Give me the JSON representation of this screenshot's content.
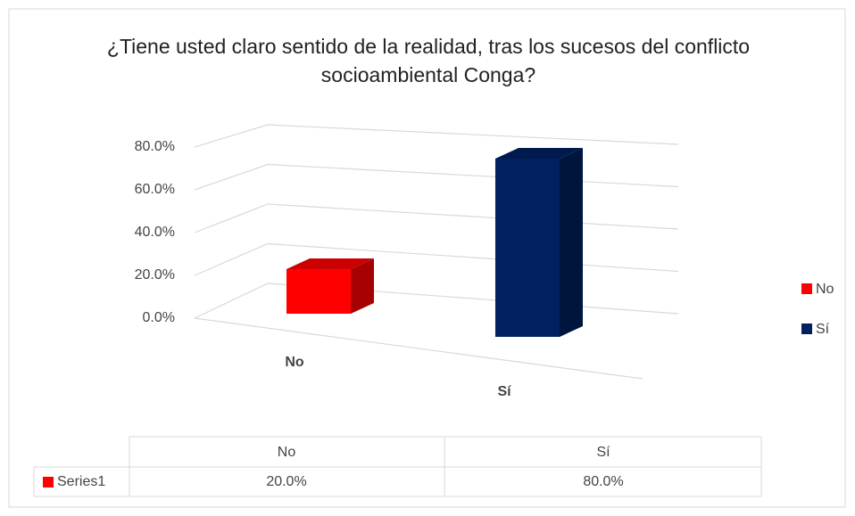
{
  "chart_data": {
    "type": "bar",
    "title": "¿Tiene usted claro sentido de la realidad, tras los sucesos del conflicto socioambiental Conga?",
    "categories": [
      "No",
      "Sí"
    ],
    "series": [
      {
        "name": "Series1",
        "values": [
          20,
          80
        ],
        "value_labels": [
          "20.0%",
          "80.0%"
        ],
        "colors": [
          "#ff0000",
          "#002060"
        ]
      }
    ],
    "ylim": [
      0,
      80
    ],
    "yticks": [
      {
        "value": 0,
        "label": "0.0%"
      },
      {
        "value": 20,
        "label": "20.0%"
      },
      {
        "value": 40,
        "label": "40.0%"
      },
      {
        "value": 60,
        "label": "60.0%"
      },
      {
        "value": 80,
        "label": "80.0%"
      }
    ],
    "grid": true,
    "legend": "right"
  }
}
